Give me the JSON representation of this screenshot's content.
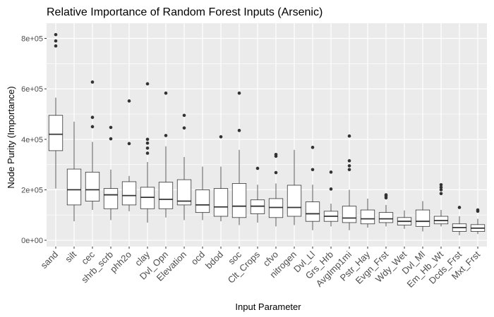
{
  "chart_data": {
    "type": "boxplot",
    "title": "Relative Importance of Random Forest Inputs (Arsenic)",
    "xlabel": "Input Parameter",
    "ylabel": "Node Purity (Importance)",
    "ylim": [
      -25000,
      860000
    ],
    "yticks": [
      0,
      200000,
      400000,
      600000,
      800000
    ],
    "ytick_labels": [
      "0e+00",
      "2e+05",
      "4e+05",
      "6e+05",
      "8e+05"
    ],
    "grid": true,
    "panel_background": "#ebebeb",
    "box_fill": "#ffffff",
    "box_stroke": "#333333",
    "categories": [
      "sand",
      "silt",
      "cec",
      "shrb_scrb",
      "phh2o",
      "clay",
      "Dvl_Opn",
      "Elevation",
      "ocd",
      "bdod",
      "soc",
      "Clt_Crops",
      "cfvo",
      "nitrogen",
      "Dvl_Ll",
      "Grs_Hrb",
      "AvgImp1mi",
      "Pstr_Hay",
      "Evgn_Frst",
      "Wdy_Wet",
      "Dvl_Ml",
      "Em_Hb_Wt",
      "Dcds_Frst",
      "Mxt_Frst"
    ],
    "boxes": [
      {
        "min": 205000,
        "q1": 355000,
        "median": 420000,
        "q3": 495000,
        "max": 565000,
        "outliers": [
          770000,
          790000,
          815000
        ]
      },
      {
        "min": 75000,
        "q1": 140000,
        "median": 200000,
        "q3": 282000,
        "max": 470000,
        "outliers": []
      },
      {
        "min": 120000,
        "q1": 155000,
        "median": 200000,
        "q3": 270000,
        "max": 390000,
        "outliers": [
          450000,
          487000,
          627000
        ]
      },
      {
        "min": 80000,
        "q1": 125000,
        "median": 180000,
        "q3": 205000,
        "max": 280000,
        "outliers": [
          402000,
          447000
        ]
      },
      {
        "min": 115000,
        "q1": 140000,
        "median": 177000,
        "q3": 232000,
        "max": 255000,
        "outliers": [
          383000,
          552000
        ]
      },
      {
        "min": 70000,
        "q1": 125000,
        "median": 170000,
        "q3": 210000,
        "max": 310000,
        "outliers": [
          345000,
          365000,
          385000,
          400000,
          620000
        ]
      },
      {
        "min": 90000,
        "q1": 125000,
        "median": 162000,
        "q3": 230000,
        "max": 372000,
        "outliers": [
          415000,
          583000
        ]
      },
      {
        "min": 80000,
        "q1": 140000,
        "median": 155000,
        "q3": 240000,
        "max": 330000,
        "outliers": [
          445000,
          495000
        ]
      },
      {
        "min": 80000,
        "q1": 110000,
        "median": 140000,
        "q3": 200000,
        "max": 292000,
        "outliers": []
      },
      {
        "min": 75000,
        "q1": 95000,
        "median": 132000,
        "q3": 205000,
        "max": 292000,
        "outliers": [
          410000
        ]
      },
      {
        "min": 60000,
        "q1": 90000,
        "median": 135000,
        "q3": 225000,
        "max": 358000,
        "outliers": [
          435000,
          583000
        ]
      },
      {
        "min": 70000,
        "q1": 105000,
        "median": 135000,
        "q3": 160000,
        "max": 220000,
        "outliers": [
          285000
        ]
      },
      {
        "min": 55000,
        "q1": 90000,
        "median": 130000,
        "q3": 165000,
        "max": 225000,
        "outliers": [
          268000,
          333000,
          340000
        ]
      },
      {
        "min": 60000,
        "q1": 95000,
        "median": 130000,
        "q3": 218000,
        "max": 358000,
        "outliers": []
      },
      {
        "min": 40000,
        "q1": 75000,
        "median": 105000,
        "q3": 152000,
        "max": 220000,
        "outliers": [
          280000,
          368000
        ]
      },
      {
        "min": 55000,
        "q1": 75000,
        "median": 95000,
        "q3": 115000,
        "max": 145000,
        "outliers": [
          203000,
          270000
        ]
      },
      {
        "min": 40000,
        "q1": 70000,
        "median": 88000,
        "q3": 135000,
        "max": 200000,
        "outliers": [
          280000,
          295000,
          315000,
          413000
        ]
      },
      {
        "min": 50000,
        "q1": 65000,
        "median": 85000,
        "q3": 120000,
        "max": 165000,
        "outliers": []
      },
      {
        "min": 55000,
        "q1": 70000,
        "median": 85000,
        "q3": 110000,
        "max": 140000,
        "outliers": [
          168000,
          175000,
          180000
        ]
      },
      {
        "min": 45000,
        "q1": 60000,
        "median": 75000,
        "q3": 90000,
        "max": 118000,
        "outliers": []
      },
      {
        "min": 35000,
        "q1": 55000,
        "median": 75000,
        "q3": 120000,
        "max": 155000,
        "outliers": []
      },
      {
        "min": 55000,
        "q1": 65000,
        "median": 78000,
        "q3": 95000,
        "max": 120000,
        "outliers": [
          185000,
          200000,
          210000,
          220000
        ]
      },
      {
        "min": 20000,
        "q1": 35000,
        "median": 50000,
        "q3": 65000,
        "max": 95000,
        "outliers": [
          130000
        ]
      },
      {
        "min": 25000,
        "q1": 35000,
        "median": 48000,
        "q3": 62000,
        "max": 85000,
        "outliers": [
          115000,
          120000
        ]
      }
    ]
  }
}
